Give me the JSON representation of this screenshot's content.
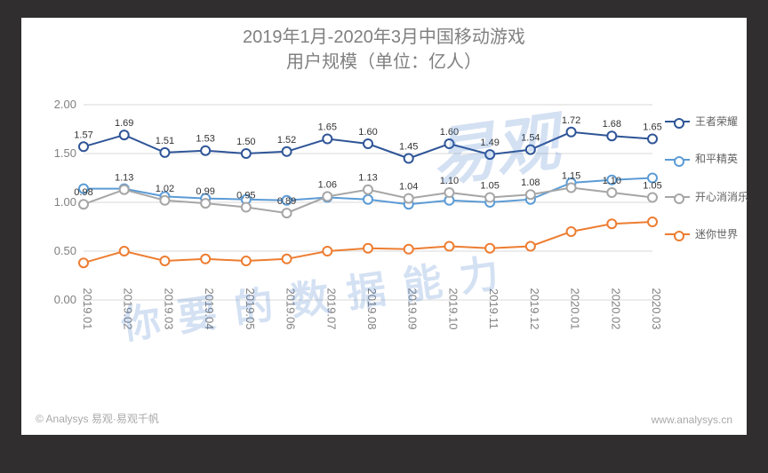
{
  "title_line1": "2019年1月-2020年3月中国移动游戏",
  "title_line2": "用户规模（单位：亿人）",
  "credit_left": "© Analysys 易观·易观千帆",
  "credit_right": "www.analysys.cn",
  "watermark_big": "易观",
  "watermark_line": "你要的数据能力",
  "chart": {
    "type": "line",
    "background_color": "#ffffff",
    "title_color": "#808080",
    "grid_color": "#d9d9d9",
    "ylim": [
      0.0,
      2.0
    ],
    "ytick_step": 0.5,
    "categories": [
      "2019.01",
      "2019.02",
      "2019.03",
      "2019.04",
      "2019.05",
      "2019.06",
      "2019.07",
      "2019.08",
      "2019.09",
      "2019.10",
      "2019.11",
      "2019.12",
      "2020.01",
      "2020.02",
      "2020.03"
    ],
    "series": [
      {
        "name": "王者荣耀",
        "color": "#2f5597",
        "marker": "circle",
        "values": [
          1.57,
          1.69,
          1.51,
          1.53,
          1.5,
          1.52,
          1.65,
          1.6,
          1.45,
          1.6,
          1.49,
          1.54,
          1.72,
          1.68,
          1.65
        ],
        "show_labels": true
      },
      {
        "name": "和平精英",
        "color": "#5b9bd5",
        "marker": "circle",
        "values": [
          1.14,
          1.14,
          1.06,
          1.04,
          1.03,
          1.02,
          1.05,
          1.03,
          0.98,
          1.02,
          1.0,
          1.03,
          1.2,
          1.23,
          1.25
        ],
        "show_labels": false
      },
      {
        "name": "开心消消乐",
        "color": "#a6a6a6",
        "marker": "circle",
        "values": [
          0.98,
          1.13,
          1.02,
          0.99,
          0.95,
          0.89,
          1.06,
          1.13,
          1.04,
          1.1,
          1.05,
          1.08,
          1.15,
          1.1,
          1.05
        ],
        "show_labels": true
      },
      {
        "name": "迷你世界",
        "color": "#ed7d31",
        "marker": "circle",
        "values": [
          0.38,
          0.5,
          0.4,
          0.42,
          0.4,
          0.42,
          0.5,
          0.53,
          0.52,
          0.55,
          0.53,
          0.55,
          0.7,
          0.78,
          0.8
        ],
        "show_labels": false
      }
    ],
    "marker_radius": 5,
    "line_width": 2,
    "label_fontsize": 11
  }
}
